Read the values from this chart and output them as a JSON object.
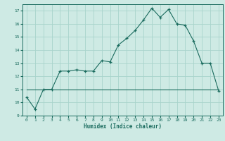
{
  "xlabel": "Humidex (Indice chaleur)",
  "bg_color": "#ceeae4",
  "grid_color": "#a8d4cc",
  "line_color": "#1a6b5e",
  "xlim": [
    -0.5,
    23.5
  ],
  "ylim": [
    9,
    17.5
  ],
  "yticks": [
    9,
    10,
    11,
    12,
    13,
    14,
    15,
    16,
    17
  ],
  "xticks": [
    0,
    1,
    2,
    3,
    4,
    5,
    6,
    7,
    8,
    9,
    10,
    11,
    12,
    13,
    14,
    15,
    16,
    17,
    18,
    19,
    20,
    21,
    22,
    23
  ],
  "curve1_x": [
    0,
    1,
    2,
    3,
    4,
    5,
    6,
    7,
    8,
    9,
    10,
    11,
    12,
    13,
    14,
    15,
    16,
    17,
    18,
    19,
    20,
    21,
    22,
    23
  ],
  "curve1_y": [
    10.4,
    9.5,
    11.0,
    11.0,
    12.4,
    12.4,
    12.5,
    12.4,
    12.4,
    13.2,
    13.1,
    14.4,
    14.9,
    15.5,
    16.3,
    17.2,
    16.5,
    17.1,
    16.0,
    15.9,
    14.7,
    13.0,
    13.0,
    10.9
  ],
  "curve2_x": [
    0,
    1,
    2,
    3,
    4,
    5,
    6,
    7,
    8,
    9,
    10,
    11,
    12,
    13,
    14,
    15,
    16,
    17,
    18,
    19,
    20,
    21,
    22,
    23
  ],
  "curve2_y": [
    11.0,
    11.0,
    11.0,
    11.0,
    11.0,
    11.0,
    11.0,
    11.0,
    11.0,
    11.0,
    11.0,
    11.0,
    11.0,
    11.0,
    11.0,
    11.0,
    11.0,
    11.0,
    11.0,
    11.0,
    11.0,
    11.0,
    11.0,
    11.0
  ]
}
